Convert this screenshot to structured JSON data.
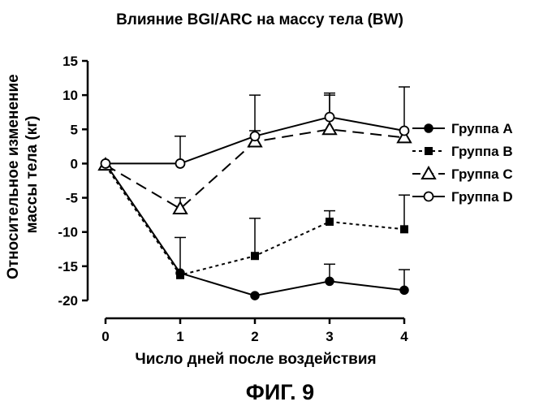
{
  "chart_data": {
    "type": "line",
    "title": "Влияние BGI/ARC на массу тела (BW)",
    "xlabel": "Число дней после воздействия",
    "ylabel_lines": [
      "Относительное изменение",
      "массы тела (кг)"
    ],
    "x": [
      0,
      1,
      2,
      3,
      4
    ],
    "xlim": [
      0,
      4
    ],
    "ylim": [
      -20,
      15
    ],
    "xticks": [
      "0",
      "1",
      "2",
      "3",
      "4"
    ],
    "yticks": [
      "-20",
      "-15",
      "-10",
      "-5",
      "0",
      "5",
      "10",
      "15"
    ],
    "grid": false,
    "legend_position": "right",
    "series": [
      {
        "name": "Группа A",
        "marker": "circle-filled",
        "line": "solid",
        "values": [
          0,
          -16,
          -19.3,
          -17.2,
          -18.5
        ],
        "errors": [
          0,
          0,
          0,
          2.5,
          3.0
        ]
      },
      {
        "name": "Группа B",
        "marker": "square-filled",
        "line": "dotted",
        "values": [
          -0.3,
          -16.3,
          -13.5,
          -8.5,
          -9.6
        ],
        "errors": [
          0,
          5.5,
          5.5,
          1.6,
          5.0
        ]
      },
      {
        "name": "Группа C",
        "marker": "triangle-open",
        "line": "dashed",
        "values": [
          -0.2,
          -6.6,
          3.2,
          5.0,
          3.8
        ],
        "errors": [
          0,
          1.6,
          1.6,
          5.0,
          0
        ]
      },
      {
        "name": "Группа D",
        "marker": "circle-open",
        "line": "solid",
        "values": [
          0,
          0,
          4.0,
          6.8,
          4.8
        ],
        "errors": [
          0,
          4.0,
          6.0,
          3.5,
          6.4
        ]
      }
    ]
  },
  "figure_caption": "ФИГ. 9"
}
